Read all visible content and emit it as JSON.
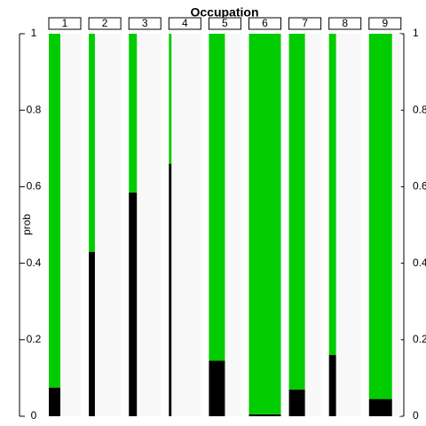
{
  "chart_data": {
    "type": "stacked-bar-panels",
    "title": "Occupation",
    "y_label": "prob",
    "categories": [
      "1",
      "2",
      "3",
      "4",
      "5",
      "6",
      "7",
      "8",
      "9"
    ],
    "series": [
      {
        "color": "#000000",
        "values": [
          0.075,
          0.43,
          0.585,
          0.66,
          0.145,
          0.005,
          0.07,
          0.16,
          0.045
        ]
      },
      {
        "color": "#00cc00",
        "values": [
          0.925,
          0.57,
          0.415,
          0.34,
          0.855,
          0.995,
          0.93,
          0.84,
          0.955
        ]
      }
    ],
    "bar_widths": [
      0.36,
      0.19,
      0.25,
      0.08,
      0.5,
      1,
      0.5,
      0.22,
      0.72
    ],
    "panel_color": "#f8f8f8",
    "ylim": [
      0,
      1
    ],
    "yticks": [
      0,
      0.2,
      0.4,
      0.6,
      0.8,
      1
    ]
  }
}
